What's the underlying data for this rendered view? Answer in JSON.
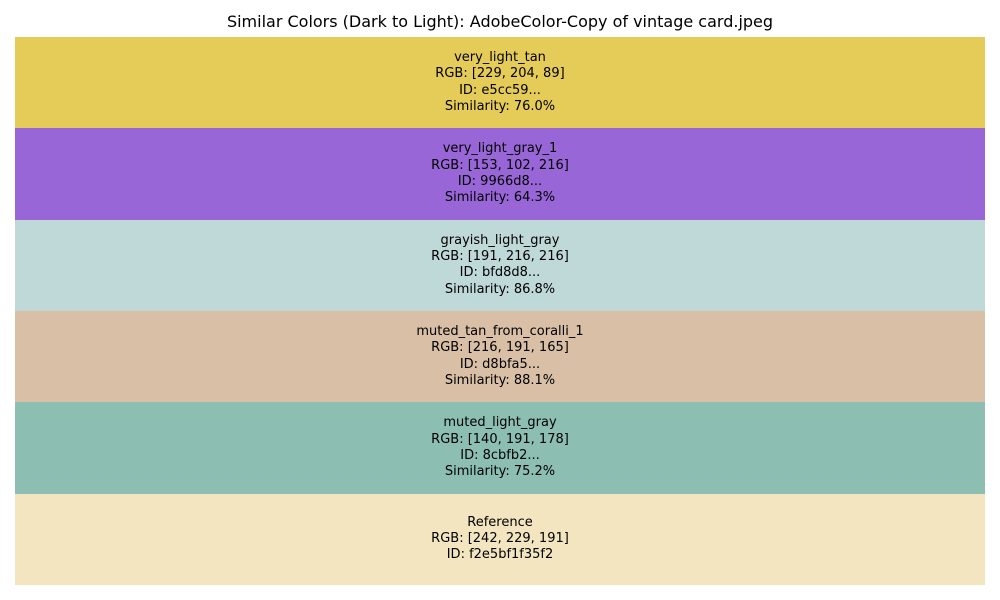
{
  "chart_data": {
    "type": "table",
    "title": "Similar Colors (Dark to Light): AdobeColor-Copy of vintage card.jpeg",
    "swatches": [
      {
        "name": "very_light_tan",
        "rgb_label": "RGB: [229, 204, 89]",
        "id_label": "ID: e5cc59...",
        "similarity_label": "Similarity: 76.0%",
        "rgb": [
          229,
          204,
          89
        ],
        "similarity": 76.0,
        "color": "#e5cc59"
      },
      {
        "name": "very_light_gray_1",
        "rgb_label": "RGB: [153, 102, 216]",
        "id_label": "ID: 9966d8...",
        "similarity_label": "Similarity: 64.3%",
        "rgb": [
          153,
          102,
          216
        ],
        "similarity": 64.3,
        "color": "#9966d8"
      },
      {
        "name": "grayish_light_gray",
        "rgb_label": "RGB: [191, 216, 216]",
        "id_label": "ID: bfd8d8...",
        "similarity_label": "Similarity: 86.8%",
        "rgb": [
          191,
          216,
          216
        ],
        "similarity": 86.8,
        "color": "#bfd8d8"
      },
      {
        "name": "muted_tan_from_coralli_1",
        "rgb_label": "RGB: [216, 191, 165]",
        "id_label": "ID: d8bfa5...",
        "similarity_label": "Similarity: 88.1%",
        "rgb": [
          216,
          191,
          165
        ],
        "similarity": 88.1,
        "color": "#d8bfa5"
      },
      {
        "name": "muted_light_gray",
        "rgb_label": "RGB: [140, 191, 178]",
        "id_label": "ID: 8cbfb2...",
        "similarity_label": "Similarity: 75.2%",
        "rgb": [
          140,
          191,
          178
        ],
        "similarity": 75.2,
        "color": "#8cbfb2"
      },
      {
        "name": "Reference",
        "rgb_label": "RGB: [242, 229, 191]",
        "id_label": "ID: f2e5bf1f35f2",
        "similarity_label": "",
        "rgb": [
          242,
          229,
          191
        ],
        "similarity": null,
        "color": "#f2e5bf"
      }
    ]
  }
}
